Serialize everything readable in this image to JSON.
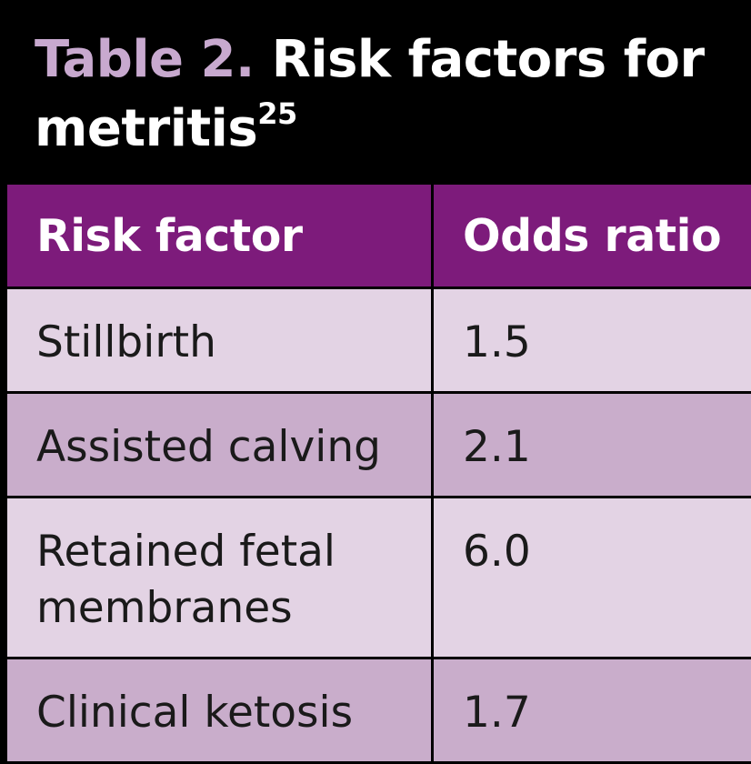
{
  "title": {
    "label": "Table 2.",
    "text": "Risk factors for metritis",
    "superscript": "25"
  },
  "table": {
    "headers": [
      "Risk factor",
      "Odds ratio"
    ],
    "rows": [
      {
        "factor": "Stillbirth",
        "odds_ratio": "1.5"
      },
      {
        "factor": "Assisted calving",
        "odds_ratio": "2.1"
      },
      {
        "factor": "Retained fetal membranes",
        "odds_ratio": "6.0"
      },
      {
        "factor": "Clinical ketosis",
        "odds_ratio": "1.7"
      }
    ]
  },
  "colors": {
    "background": "#000000",
    "title_label": "#c8a9cf",
    "title_text": "#ffffff",
    "header_bg": "#7d1b7b",
    "row_light": "#e3d3e4",
    "row_dark": "#c9adcb"
  }
}
